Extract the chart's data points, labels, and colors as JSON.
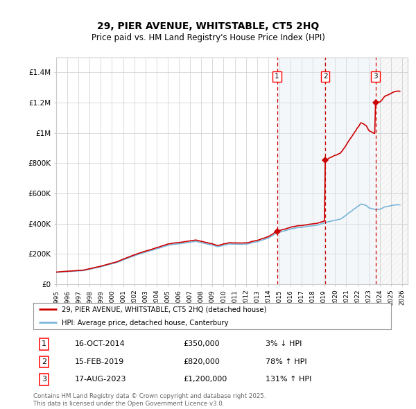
{
  "title": "29, PIER AVENUE, WHITSTABLE, CT5 2HQ",
  "subtitle": "Price paid vs. HM Land Registry's House Price Index (HPI)",
  "ylim": [
    0,
    1500000
  ],
  "xlim_start": 1995.0,
  "xlim_end": 2026.5,
  "yticks": [
    0,
    200000,
    400000,
    600000,
    800000,
    1000000,
    1200000,
    1400000
  ],
  "ytick_labels": [
    "£0",
    "£200K",
    "£400K",
    "£600K",
    "£800K",
    "£1M",
    "£1.2M",
    "£1.4M"
  ],
  "xticks": [
    1995,
    1996,
    1997,
    1998,
    1999,
    2000,
    2001,
    2002,
    2003,
    2004,
    2005,
    2006,
    2007,
    2008,
    2009,
    2010,
    2011,
    2012,
    2013,
    2014,
    2015,
    2016,
    2017,
    2018,
    2019,
    2020,
    2021,
    2022,
    2023,
    2024,
    2025,
    2026
  ],
  "sale_dates": [
    2014.79,
    2019.12,
    2023.62
  ],
  "sale_prices": [
    350000,
    820000,
    1200000
  ],
  "sale_labels": [
    "1",
    "2",
    "3"
  ],
  "sale_date_strs": [
    "16-OCT-2014",
    "15-FEB-2019",
    "17-AUG-2023"
  ],
  "sale_price_strs": [
    "£350,000",
    "£820,000",
    "£1,200,000"
  ],
  "sale_pct_strs": [
    "3% ↓ HPI",
    "78% ↑ HPI",
    "131% ↑ HPI"
  ],
  "hpi_line_color": "#6baed6",
  "property_line_color": "#cc0000",
  "vline_color": "#cc0000",
  "shade_color": "#dce6f1",
  "background_color": "#ffffff",
  "grid_color": "#cccccc",
  "legend_label_property": "29, PIER AVENUE, WHITSTABLE, CT5 2HQ (detached house)",
  "legend_label_hpi": "HPI: Average price, detached house, Canterbury",
  "footnote": "Contains HM Land Registry data © Crown copyright and database right 2025.\nThis data is licensed under the Open Government Licence v3.0.",
  "hatch_start": 2023.62,
  "shade_start": 2014.79,
  "shade_end": 2023.62
}
